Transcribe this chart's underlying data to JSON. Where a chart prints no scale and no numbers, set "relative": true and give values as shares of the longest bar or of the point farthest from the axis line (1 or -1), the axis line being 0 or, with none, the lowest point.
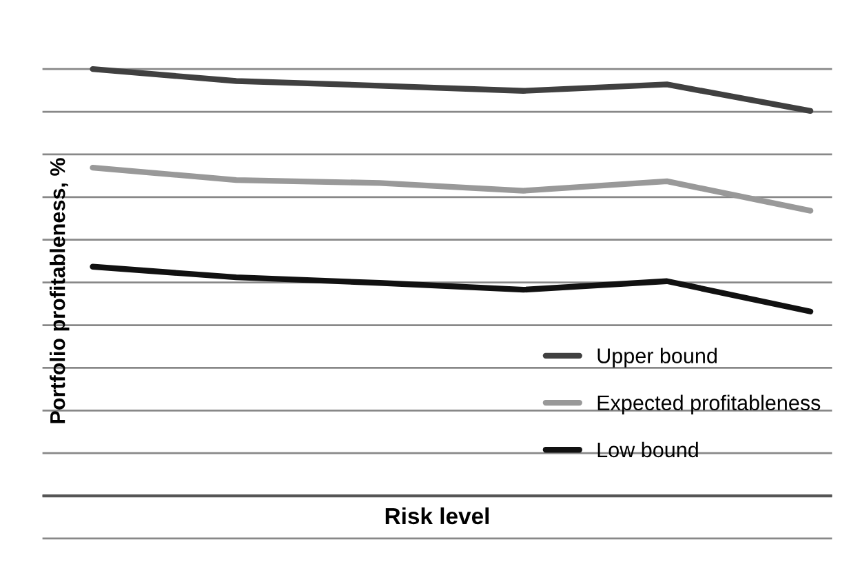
{
  "chart_data": {
    "type": "line",
    "relative": true,
    "xlabel": "Risk level",
    "ylabel": "Portfolio profitableness, %",
    "categories": [
      null,
      null,
      null,
      null,
      null,
      null
    ],
    "series": [
      {
        "name": "Upper bound",
        "color": "#404040",
        "values": [
          1,
          0.972,
          0.961,
          0.949,
          0.964,
          0.902
        ]
      },
      {
        "name": "Expected profitableness",
        "color": "#999999",
        "values": [
          0.769,
          0.74,
          0.733,
          0.715,
          0.737,
          0.668
        ]
      },
      {
        "name": "Low bound",
        "color": "#111111",
        "values": [
          0.537,
          0.512,
          0.499,
          0.483,
          0.503,
          0.432
        ]
      }
    ],
    "grid": "y",
    "legend": "bottom right",
    "marker": "none",
    "line_style": "solid"
  }
}
